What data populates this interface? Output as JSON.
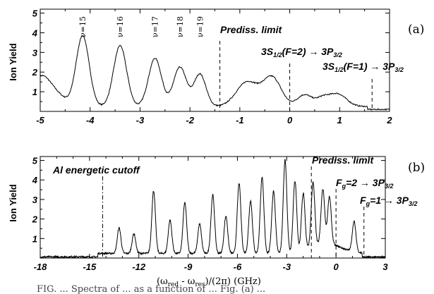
{
  "chart_data": [
    {
      "type": "line",
      "panel_label": "(a)",
      "ylabel": "Ion Yield",
      "xlim": [
        -5,
        2
      ],
      "ylim": [
        0,
        5.2
      ],
      "x_ticks": [
        -5,
        -4,
        -3,
        -2,
        -1,
        0,
        1,
        2
      ],
      "y_ticks": [
        1,
        2,
        3,
        4,
        5
      ],
      "peaks": [
        {
          "label": "ν=15",
          "x": -4.15,
          "height": 3.6,
          "width": 0.13
        },
        {
          "label": "ν=16",
          "x": -3.4,
          "height": 3.1,
          "width": 0.13
        },
        {
          "label": "ν=17",
          "x": -2.7,
          "height": 2.45,
          "width": 0.13
        },
        {
          "label": "ν=18",
          "x": -2.2,
          "height": 2.0,
          "width": 0.13
        },
        {
          "label": "ν=19",
          "x": -1.8,
          "height": 1.65,
          "width": 0.12
        }
      ],
      "markers": [
        {
          "x": -1.4,
          "style": "dashed",
          "label": "Prediss. limit"
        },
        {
          "x": 0.0,
          "style": "dashed",
          "label": "3S1/2(F=2) → 3P3/2"
        },
        {
          "x": 1.65,
          "style": "dashed",
          "label": "3S1/2(F=1) → 3P3/2"
        }
      ]
    },
    {
      "type": "line",
      "panel_label": "(b)",
      "ylabel": "Ion Yield",
      "xlabel": "(ωred - ωres)/(2π)  (GHz)",
      "xlim": [
        -18,
        3
      ],
      "ylim": [
        0,
        5.2
      ],
      "x_ticks": [
        -18,
        -15,
        -12,
        -9,
        -6,
        -3,
        0,
        3
      ],
      "y_ticks": [
        1,
        2,
        3,
        4,
        5
      ],
      "peaks": [
        {
          "x": -13.2,
          "height": 1.3
        },
        {
          "x": -12.3,
          "height": 1.0
        },
        {
          "x": -11.1,
          "height": 3.2
        },
        {
          "x": -10.1,
          "height": 1.7
        },
        {
          "x": -9.2,
          "height": 2.6
        },
        {
          "x": -8.3,
          "height": 1.5
        },
        {
          "x": -7.5,
          "height": 3.0
        },
        {
          "x": -6.7,
          "height": 1.9
        },
        {
          "x": -5.9,
          "height": 3.6
        },
        {
          "x": -5.2,
          "height": 2.7
        },
        {
          "x": -4.5,
          "height": 3.9
        },
        {
          "x": -3.8,
          "height": 3.2
        },
        {
          "x": -3.1,
          "height": 4.8
        },
        {
          "x": -2.5,
          "height": 3.7
        },
        {
          "x": -2.0,
          "height": 3.0
        },
        {
          "x": -1.4,
          "height": 3.3
        },
        {
          "x": -0.8,
          "height": 2.8
        },
        {
          "x": -0.4,
          "height": 2.4
        },
        {
          "x": 1.1,
          "height": 1.55
        }
      ],
      "markers": [
        {
          "x": -14.2,
          "style": "dashdot",
          "label": "Al energetic cutoff"
        },
        {
          "x": -1.5,
          "style": "dashed",
          "label": "Prediss. limit"
        },
        {
          "x": 0.0,
          "style": "dashed",
          "label": "Fg=2 → 3P3/2"
        },
        {
          "x": 1.7,
          "style": "dashed",
          "label": "Fg=1 → 3P3/2"
        }
      ]
    }
  ],
  "labels": {
    "a_title": "(a)",
    "b_title": "(b)",
    "ylabel": "Ion Yield",
    "a_prediss": "Prediss. limit",
    "a_tr1_main": "3S",
    "a_tr1_sub": "1/2",
    "a_tr1_mid": "(F=2) → 3P",
    "a_tr1_sub2": "3/2",
    "a_tr2_main": "3S",
    "a_tr2_sub": "1/2",
    "a_tr2_mid": "(F=1) → 3P",
    "a_tr2_sub2": "3/2",
    "b_prediss": "Prediss. limit",
    "b_cutoff": "Al energetic cutoff",
    "b_tr1_main": "F",
    "b_tr1_sub": "g",
    "b_tr1_mid": "=2 → 3P",
    "b_tr1_sub2": "3/2",
    "b_tr2_main": "F",
    "b_tr2_sub": "g",
    "b_tr2_mid": "=1 → 3P",
    "b_tr2_sub2": "3/2",
    "xlabel_omega1": "(ω",
    "xlabel_red": "red",
    "xlabel_mid": " - ω",
    "xlabel_res": "res",
    "xlabel_end": ")/(2π)  (GHz)",
    "caption": "FIG. ... Spectra of ... as a function of ... Fig. (a) ..."
  }
}
